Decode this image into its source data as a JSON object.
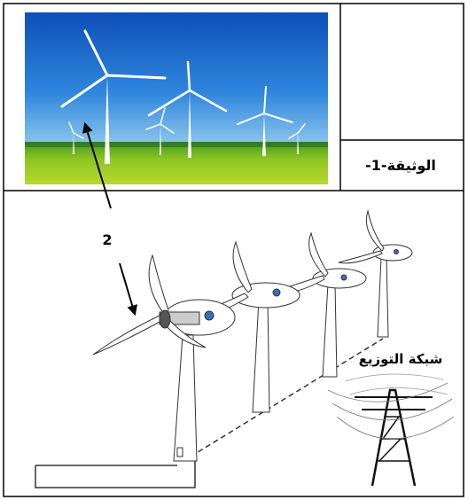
{
  "document": {
    "label": "الوثيقة-1-",
    "arrow_number": "2",
    "grid_label": "شبكة التوزيع"
  }
}
